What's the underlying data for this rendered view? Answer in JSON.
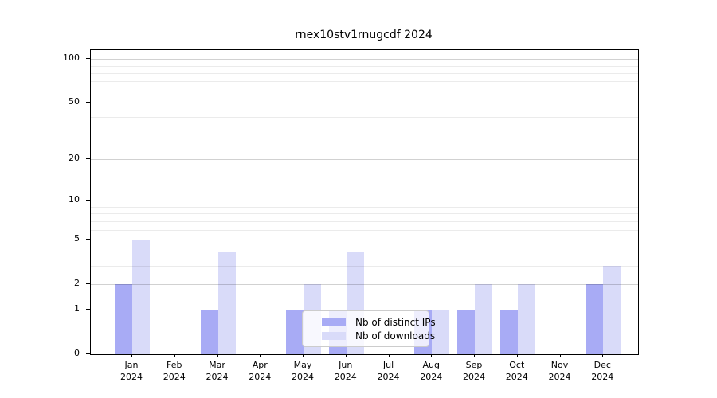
{
  "chart_data": {
    "type": "bar",
    "title": "rnex10stv1rnugcdf 2024",
    "categories": [
      "Jan",
      "Feb",
      "Mar",
      "Apr",
      "May",
      "Jun",
      "Jul",
      "Aug",
      "Sep",
      "Oct",
      "Nov",
      "Dec"
    ],
    "year_label": "2024",
    "series": [
      {
        "name": "Nb of distinct IPs",
        "color": "#a8abf5",
        "values": [
          2,
          0,
          1,
          0,
          1,
          1,
          0,
          1,
          1,
          1,
          0,
          2
        ]
      },
      {
        "name": "Nb of downloads",
        "color": "#d9dbf9",
        "values": [
          5,
          0,
          4,
          0,
          2,
          4,
          0,
          1,
          2,
          2,
          0,
          3
        ]
      }
    ],
    "y_ticks": [
      0,
      1,
      2,
      5,
      10,
      20,
      50,
      100
    ],
    "y_minor_ticks": [
      3,
      4,
      6,
      7,
      8,
      9,
      30,
      40,
      60,
      70,
      80,
      90
    ],
    "y_scale": "log1p",
    "ylim": [
      0,
      115
    ],
    "grid": true,
    "legend_position": "lower-center"
  },
  "colors": {
    "spine": "#000000",
    "grid_major": "rgba(0,0,0,0.18)",
    "grid_minor": "rgba(0,0,0,0.08)",
    "legend_bg": "rgba(255,255,255,0.8)",
    "legend_border": "#cccccc",
    "text": "#000000"
  }
}
